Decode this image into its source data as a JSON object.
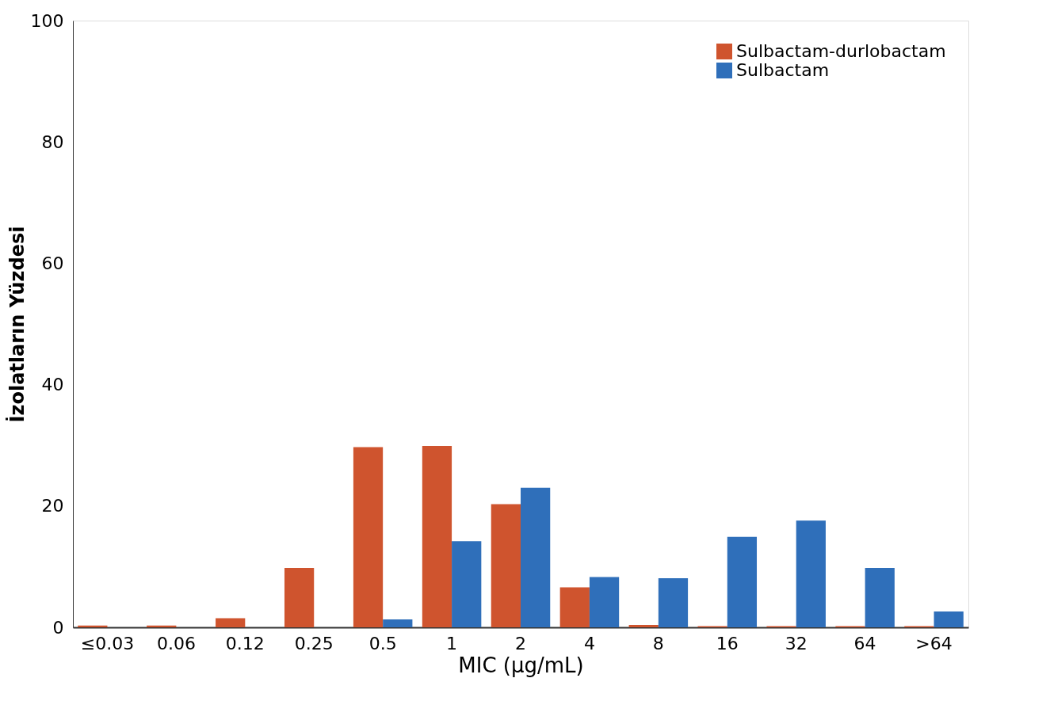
{
  "chart_data": {
    "type": "bar",
    "xlabel": "MIC (µg/mL)",
    "ylabel": "İzolatların Yüzdesi",
    "categories": [
      "≤0.03",
      "0.06",
      "0.12",
      "0.25",
      "0.5",
      "1",
      "2",
      "4",
      "8",
      "16",
      "32",
      "64",
      ">64"
    ],
    "series": [
      {
        "name": "Sulbactam-durlobactam",
        "color": "#cf542e",
        "values": [
          0.3,
          0.3,
          1.5,
          9.8,
          29.7,
          29.9,
          20.3,
          6.6,
          0.4,
          0.2,
          0.2,
          0.2,
          0.2
        ]
      },
      {
        "name": "Sulbactam",
        "color": "#2f6fba",
        "values": [
          0,
          0,
          0,
          0,
          1.3,
          14.2,
          23.0,
          8.3,
          8.1,
          14.9,
          17.6,
          9.8,
          2.6
        ]
      }
    ],
    "ylim": [
      0,
      100
    ],
    "yticks": [
      0,
      20,
      40,
      60,
      80,
      100
    ],
    "grid": false,
    "legend": "top right"
  }
}
